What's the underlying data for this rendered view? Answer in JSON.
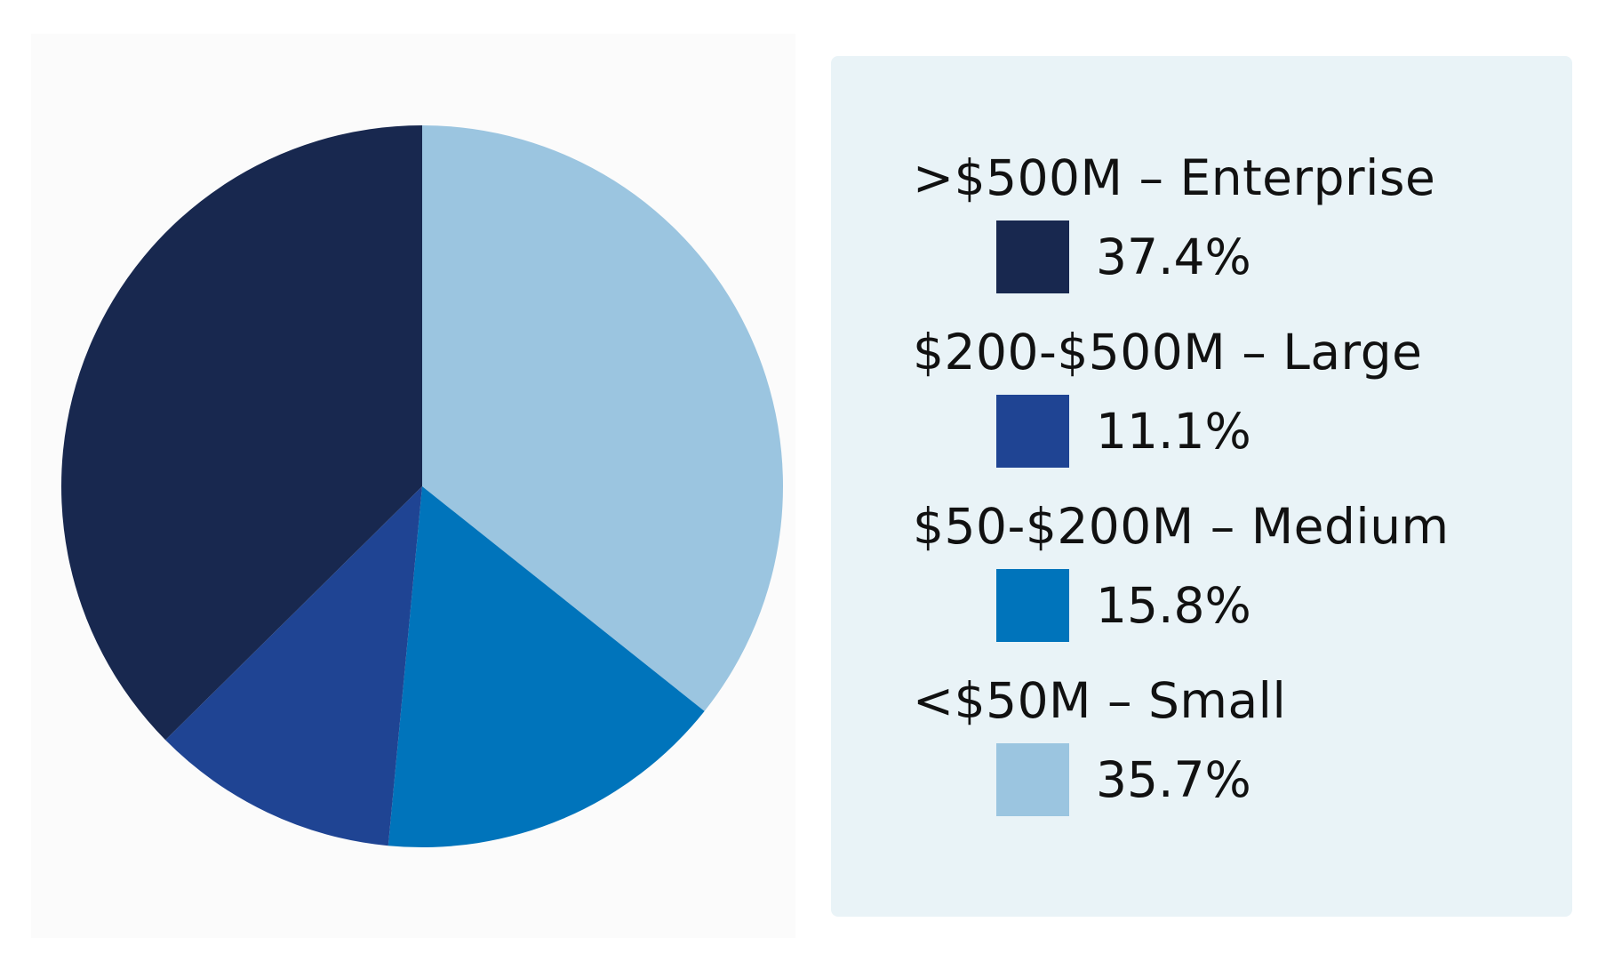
{
  "chart_data": {
    "type": "pie",
    "title": "",
    "slices": [
      {
        "label": ">$500M – Enterprise",
        "value": 37.4,
        "value_label": "37.4%",
        "color": "#18284f"
      },
      {
        "label": "$200-$500M – Large",
        "value": 11.1,
        "value_label": "11.1%",
        "color": "#1f4493"
      },
      {
        "label": "$50-$200M – Medium",
        "value": 15.8,
        "value_label": "15.8%",
        "color": "#0074bb"
      },
      {
        "label": "<$50M – Small",
        "value": 35.7,
        "value_label": "35.7%",
        "color": "#9bc5e0"
      }
    ],
    "legend_placement": "right",
    "drawing_order": "clockwise from top starting with <$50M – Small, then $50-$200M – Medium, $200-$500M – Large, >$500M – Enterprise"
  },
  "colors": {
    "legend_background": "#e9f3f7",
    "chart_background": "#fbfbfb"
  }
}
